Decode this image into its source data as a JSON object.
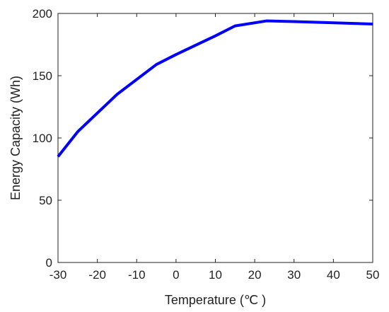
{
  "chart_data": {
    "type": "line",
    "title": "",
    "xlabel": "Temperature (℃ )",
    "ylabel": "Energy Capacity (Wh)",
    "xlim": [
      -30,
      50
    ],
    "ylim": [
      0,
      200
    ],
    "xticks": [
      -30,
      -20,
      -10,
      0,
      10,
      20,
      30,
      40,
      50
    ],
    "yticks": [
      0,
      50,
      100,
      150,
      200
    ],
    "grid": false,
    "legend": "none",
    "series": [
      {
        "color": "#0000ff",
        "x": [
          -30,
          -25,
          -15,
          -5,
          0,
          10,
          15,
          23,
          30,
          50
        ],
        "y": [
          85,
          105,
          135,
          159,
          167,
          182,
          190,
          194,
          193.5,
          191.5
        ]
      }
    ]
  }
}
